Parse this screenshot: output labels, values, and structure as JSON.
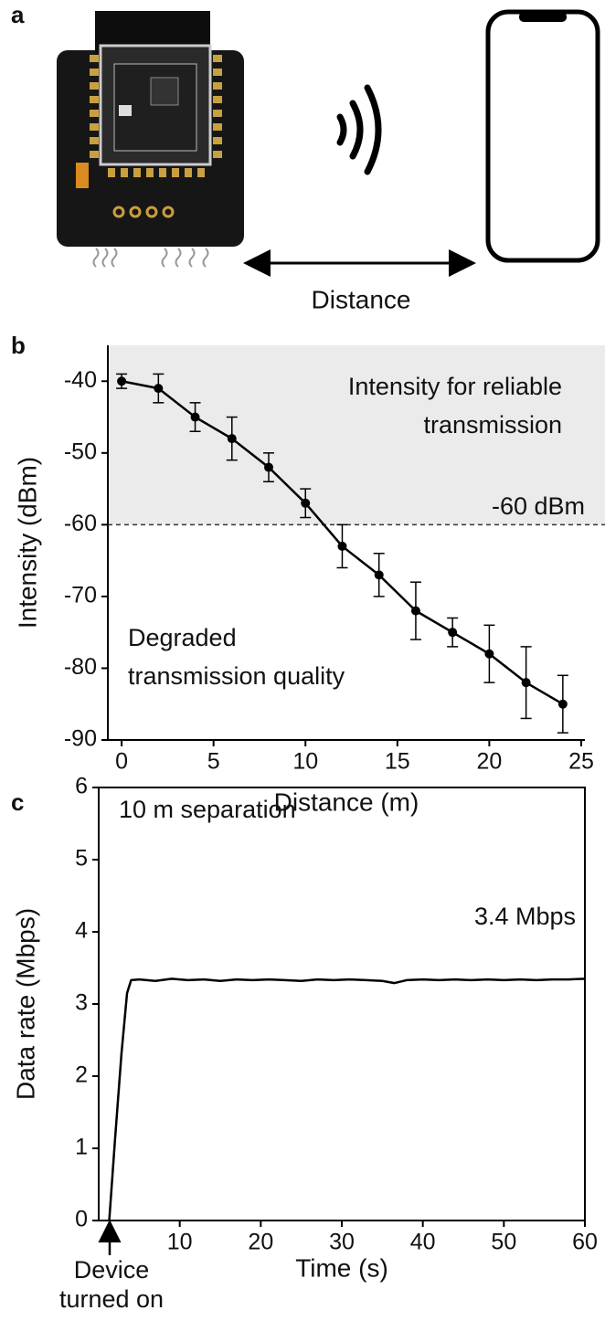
{
  "illustration": {
    "panel_label": "a",
    "caption": "Distance"
  },
  "chart_data": [
    {
      "type": "line",
      "panel_label": "b",
      "xlabel": "Distance (m)",
      "ylabel": "Intensity (dBm)",
      "x": [
        0,
        2,
        4,
        6,
        8,
        10,
        12,
        14,
        16,
        18,
        20,
        22,
        24
      ],
      "values": [
        -40,
        -41,
        -45,
        -48,
        -52,
        -57,
        -63,
        -67,
        -72,
        -75,
        -78,
        -82,
        -85
      ],
      "errors": [
        1,
        2,
        2,
        3,
        2,
        2,
        3,
        3,
        4,
        2,
        4,
        5,
        4
      ],
      "color": "#000000",
      "markers": true,
      "xlim": [
        -0.75,
        25.2
      ],
      "xticks": [
        0,
        5,
        10,
        15,
        20,
        25
      ],
      "ylim": [
        -90,
        -35
      ],
      "yticks": [
        -90,
        -80,
        -70,
        -60,
        -50,
        -40
      ],
      "threshold": {
        "value": -60,
        "label": "-60 dBm",
        "shade_above": "#ebebeb"
      },
      "annotations": [
        {
          "text": [
            "Intensity for reliable",
            "transmission"
          ]
        },
        {
          "text": [
            "Degraded",
            "transmission quality"
          ]
        }
      ],
      "frame": false
    },
    {
      "type": "line",
      "panel_label": "c",
      "xlabel": "Time (s)",
      "ylabel": "Data rate (Mbps)",
      "x": [
        1.3,
        2.0,
        2.8,
        3.5,
        4.0,
        5,
        7,
        9,
        11,
        13,
        15,
        17,
        19,
        21,
        23,
        25,
        27,
        29,
        31,
        33,
        35,
        36.5,
        38,
        40,
        42,
        44,
        46,
        48,
        50,
        52,
        54,
        56,
        58,
        60
      ],
      "values": [
        0,
        1.1,
        2.3,
        3.15,
        3.33,
        3.34,
        3.32,
        3.35,
        3.33,
        3.34,
        3.32,
        3.34,
        3.33,
        3.34,
        3.33,
        3.32,
        3.34,
        3.33,
        3.34,
        3.33,
        3.32,
        3.29,
        3.33,
        3.34,
        3.33,
        3.34,
        3.33,
        3.34,
        3.33,
        3.34,
        3.33,
        3.34,
        3.34,
        3.35
      ],
      "color": "#000000",
      "markers": false,
      "xlim": [
        0,
        60
      ],
      "xticks": [
        10,
        20,
        30,
        40,
        50,
        60
      ],
      "ylim": [
        0,
        6
      ],
      "yticks": [
        0,
        1,
        2,
        3,
        4,
        5,
        6
      ],
      "annotations": [
        {
          "text": [
            "10 m separation"
          ]
        },
        {
          "text": [
            "3.4 Mbps"
          ]
        },
        {
          "text": [
            "Device",
            "turned on"
          ]
        }
      ],
      "frame": true
    }
  ]
}
